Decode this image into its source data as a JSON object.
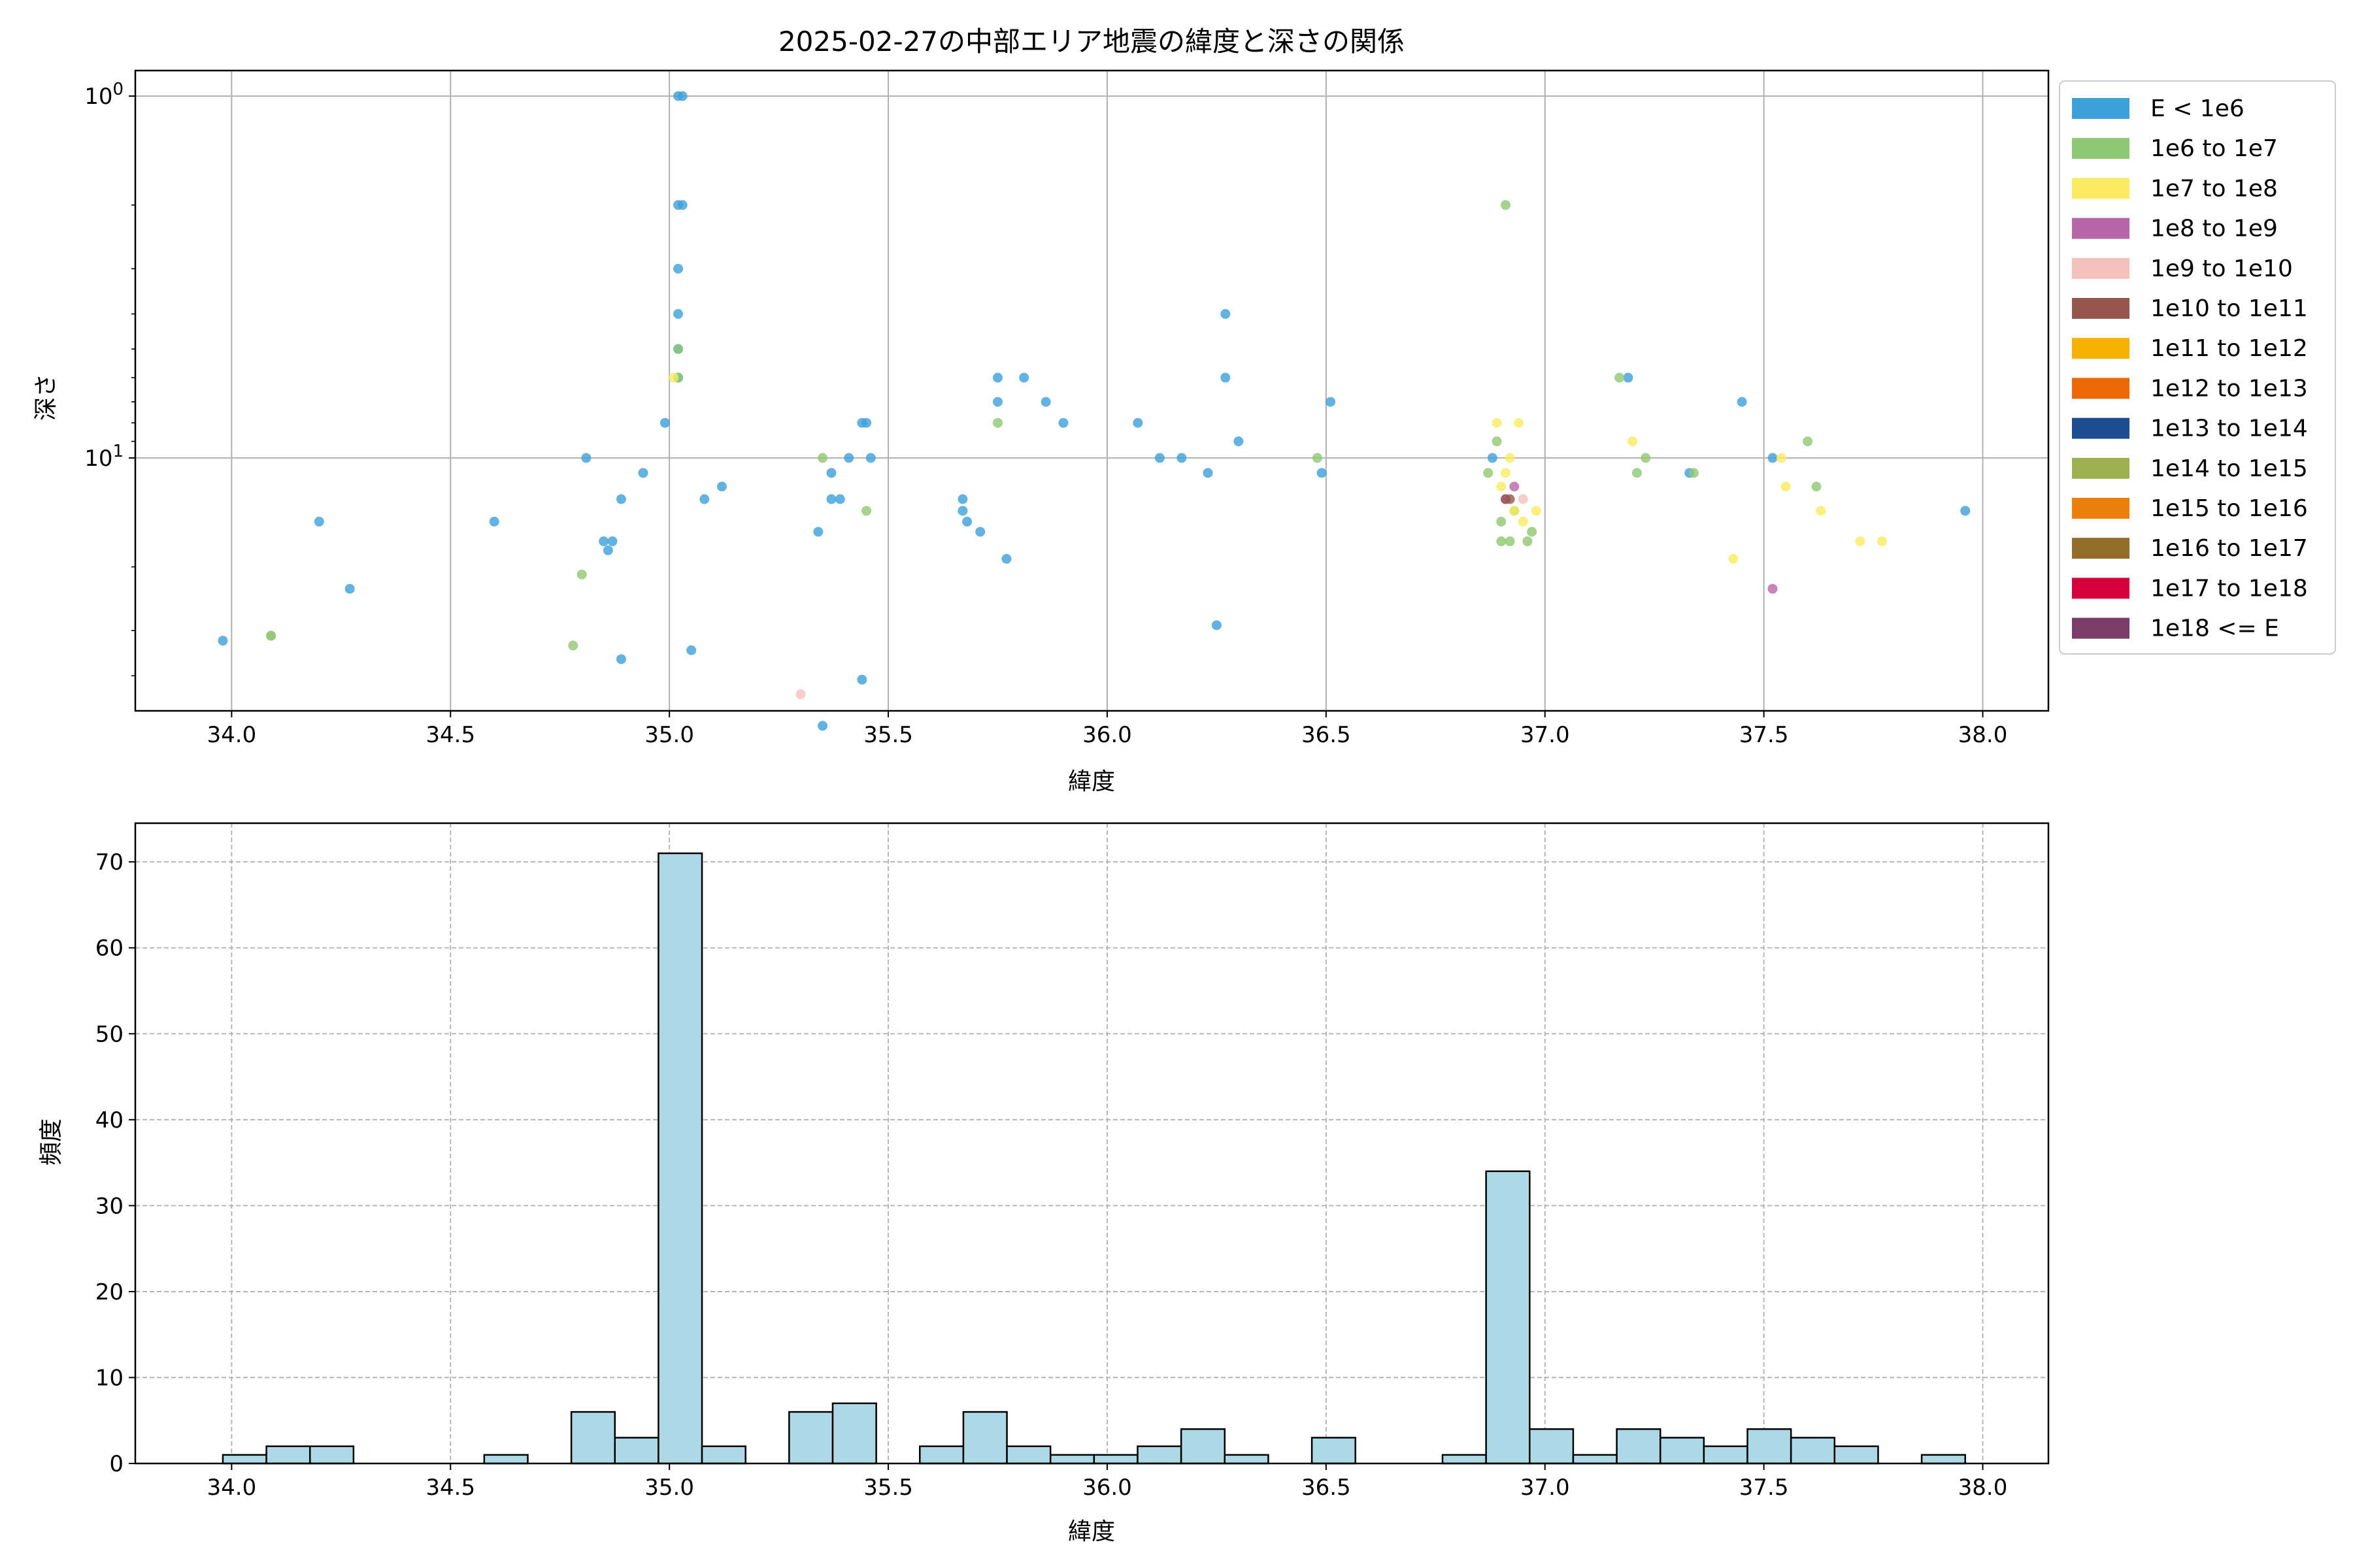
{
  "chart_data": [
    {
      "type": "scatter",
      "title": "2025-02-27の中部エリア地震の緯度と深さの関係",
      "xlabel": "緯度",
      "ylabel": "深さ",
      "xlim": [
        33.78,
        38.15
      ],
      "ylim": [
        50,
        0.85
      ],
      "yscale": "log",
      "y_inverted": true,
      "x_ticks": [
        "34.0",
        "34.5",
        "35.0",
        "35.5",
        "36.0",
        "36.5",
        "37.0",
        "37.5",
        "38.0"
      ],
      "x_tick_values": [
        34.0,
        34.5,
        35.0,
        35.5,
        36.0,
        36.5,
        37.0,
        37.5,
        38.0
      ],
      "y_ticks": [
        {
          "value": 1,
          "label": "10^0"
        },
        {
          "value": 10,
          "label": "10^1"
        }
      ],
      "grid": true,
      "legend_position": "outside-right",
      "legend": [
        {
          "name": "E < 1e6",
          "color": "#3ca0db"
        },
        {
          "name": "1e6 to 1e7",
          "color": "#8fc872"
        },
        {
          "name": "1e7 to 1e8",
          "color": "#faeb60"
        },
        {
          "name": "1e8 to 1e9",
          "color": "#b666a6"
        },
        {
          "name": "1e9 to 1e10",
          "color": "#f4c0bb"
        },
        {
          "name": "1e10 to 1e11",
          "color": "#965650"
        },
        {
          "name": "1e11 to 1e12",
          "color": "#f7b100"
        },
        {
          "name": "1e12 to 1e13",
          "color": "#ec6706"
        },
        {
          "name": "1e13 to 1e14",
          "color": "#1d4d91"
        },
        {
          "name": "1e14 to 1e15",
          "color": "#9db050"
        },
        {
          "name": "1e15 to 1e16",
          "color": "#ec7f0a"
        },
        {
          "name": "1e16 to 1e17",
          "color": "#946d2a"
        },
        {
          "name": "1e17 to 1e18",
          "color": "#d6003a"
        },
        {
          "name": "1e18 <= E",
          "color": "#7a3c68"
        }
      ],
      "series": [
        {
          "color": "#3ca0db",
          "x": [
            33.98,
            34.2,
            34.27,
            34.6,
            34.81,
            34.85,
            34.86,
            34.87,
            34.89,
            34.89,
            34.94,
            34.99,
            35.02,
            35.02,
            35.02,
            35.02,
            35.02,
            35.02,
            35.03,
            35.03,
            35.05,
            35.08,
            35.12,
            35.34,
            35.35,
            35.37,
            35.37,
            35.39,
            35.41,
            35.44,
            35.44,
            35.45,
            35.46,
            35.67,
            35.67,
            35.68,
            35.71,
            35.75,
            35.75,
            35.77,
            35.81,
            35.86,
            35.9,
            36.07,
            36.12,
            36.17,
            36.23,
            36.25,
            36.27,
            36.27,
            36.3,
            36.49,
            36.51,
            36.88,
            37.19,
            37.33,
            37.45,
            37.52,
            37.96
          ],
          "y": [
            32,
            15,
            23,
            15,
            10,
            17,
            18,
            17,
            13,
            36,
            11,
            8,
            1,
            2,
            3,
            4,
            5,
            6,
            1,
            2,
            34,
            13,
            12,
            16,
            55,
            13,
            11,
            13,
            10,
            8,
            41,
            8,
            10,
            13,
            14,
            15,
            16,
            6,
            7,
            19,
            6,
            7,
            8,
            8,
            10,
            10,
            11,
            29,
            4,
            6,
            9,
            11,
            7,
            10,
            6,
            11,
            7,
            10,
            14
          ]
        },
        {
          "color": "#8fc872",
          "x": [
            34.09,
            34.09,
            34.78,
            34.8,
            35.02,
            35.02,
            35.35,
            35.45,
            35.75,
            36.48,
            36.87,
            36.89,
            36.9,
            36.9,
            36.91,
            36.92,
            36.93,
            36.96,
            36.97,
            37.17,
            37.21,
            37.23,
            37.34,
            37.6,
            37.62
          ],
          "y": [
            31,
            31,
            33,
            21,
            5,
            6,
            10,
            14,
            8,
            10,
            11,
            9,
            15,
            17,
            2,
            17,
            14,
            17,
            16,
            6,
            11,
            10,
            11,
            9,
            12
          ]
        },
        {
          "color": "#faeb60",
          "x": [
            35.01,
            36.89,
            36.9,
            36.91,
            36.92,
            36.93,
            36.94,
            36.95,
            36.98,
            37.2,
            37.43,
            37.54,
            37.55,
            37.63,
            37.72,
            37.77
          ],
          "y": [
            6,
            8,
            12,
            11,
            10,
            14,
            8,
            15,
            14,
            9,
            19,
            10,
            12,
            14,
            17,
            17
          ]
        },
        {
          "color": "#b666a6",
          "x": [
            36.91,
            36.93,
            37.52
          ],
          "y": [
            13,
            12,
            23
          ]
        },
        {
          "color": "#f4c0bb",
          "x": [
            35.3,
            36.95
          ],
          "y": [
            45,
            13
          ]
        },
        {
          "color": "#965650",
          "x": [
            36.91,
            36.92
          ],
          "y": [
            13,
            13
          ]
        }
      ]
    },
    {
      "type": "bar",
      "title": "",
      "xlabel": "緯度",
      "ylabel": "頻度",
      "xlim": [
        33.78,
        38.15
      ],
      "ylim": [
        0,
        74.5
      ],
      "x_ticks": [
        "34.0",
        "34.5",
        "35.0",
        "35.5",
        "36.0",
        "36.5",
        "37.0",
        "37.5",
        "38.0"
      ],
      "x_tick_values": [
        34.0,
        34.5,
        35.0,
        35.5,
        36.0,
        36.5,
        37.0,
        37.5,
        38.0
      ],
      "y_ticks": [
        0,
        10,
        20,
        30,
        40,
        50,
        60,
        70
      ],
      "grid": true,
      "bar_color": "#add8e6",
      "bin_start": 33.98,
      "bin_width": 0.0995,
      "values": [
        1,
        2,
        2,
        0,
        0,
        0,
        1,
        0,
        6,
        3,
        71,
        2,
        0,
        6,
        7,
        0,
        2,
        6,
        2,
        1,
        1,
        2,
        4,
        1,
        0,
        3,
        0,
        0,
        1,
        34,
        4,
        1,
        4,
        3,
        2,
        4,
        3,
        2,
        0,
        1
      ]
    }
  ]
}
